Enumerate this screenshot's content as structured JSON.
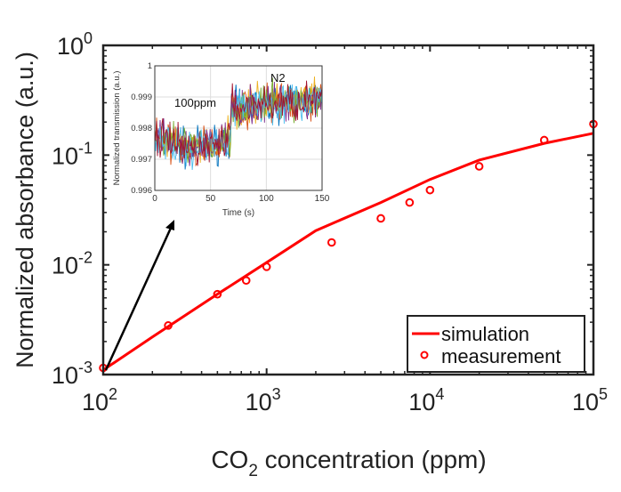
{
  "chart_data": {
    "type": "scatter",
    "title": "",
    "xlabel": "CO",
    "xlabel_sub": "2",
    "xlabel_rest": " concentration (ppm)",
    "ylabel": "Normalized absorbance (a.u.)",
    "xscale": "log",
    "yscale": "log",
    "xlim": [
      100,
      100000
    ],
    "ylim": [
      0.001,
      1
    ],
    "xticks": [
      {
        "base": "10",
        "exp": "2",
        "v": 100
      },
      {
        "base": "10",
        "exp": "3",
        "v": 1000
      },
      {
        "base": "10",
        "exp": "4",
        "v": 10000
      },
      {
        "base": "10",
        "exp": "5",
        "v": 100000
      }
    ],
    "yticks": [
      {
        "base": "10",
        "exp": "-3",
        "v": 0.001
      },
      {
        "base": "10",
        "exp": "-2",
        "v": 0.01
      },
      {
        "base": "10",
        "exp": "-1",
        "v": 0.1
      },
      {
        "base": "10",
        "exp": "0",
        "v": 1
      }
    ],
    "legend_position": "bottom-right",
    "series": [
      {
        "name": "simulation",
        "style": "line",
        "color": "#ff0000",
        "x": [
          100,
          200,
          500,
          1000,
          2000,
          5000,
          10000,
          20000,
          50000,
          100000
        ],
        "y": [
          0.0011,
          0.0022,
          0.0054,
          0.0105,
          0.0205,
          0.037,
          0.06,
          0.09,
          0.128,
          0.158
        ]
      },
      {
        "name": "measurement",
        "style": "marker-circle",
        "color": "#ff0000",
        "x": [
          100,
          250,
          500,
          750,
          1000,
          2500,
          5000,
          7500,
          10000,
          20000,
          50000,
          100000
        ],
        "y": [
          0.00115,
          0.0028,
          0.0054,
          0.0072,
          0.0096,
          0.016,
          0.0265,
          0.037,
          0.048,
          0.079,
          0.137,
          0.192
        ]
      }
    ],
    "inset": {
      "type": "line",
      "xlabel": "Time (s)",
      "ylabel": "Normalized transmission (a.u.)",
      "xlim": [
        0,
        150
      ],
      "ylim": [
        0.996,
        1
      ],
      "xticks": [
        "0",
        "50",
        "100",
        "150"
      ],
      "yticks": [
        "0.996",
        "0.997",
        "0.998",
        "0.999",
        "1"
      ],
      "grid": true,
      "annotations": [
        "100ppm",
        "N2"
      ],
      "n_traces": 7,
      "trace_colors": [
        "#0072bd",
        "#d95319",
        "#edb120",
        "#7e2f8e",
        "#77ac30",
        "#4dbeee",
        "#a2142f"
      ],
      "level_before": 0.99775,
      "level_after": 0.99865,
      "step_time": 68
    },
    "arrow": {
      "from": "measurement at 100 ppm",
      "to": "inset"
    }
  }
}
